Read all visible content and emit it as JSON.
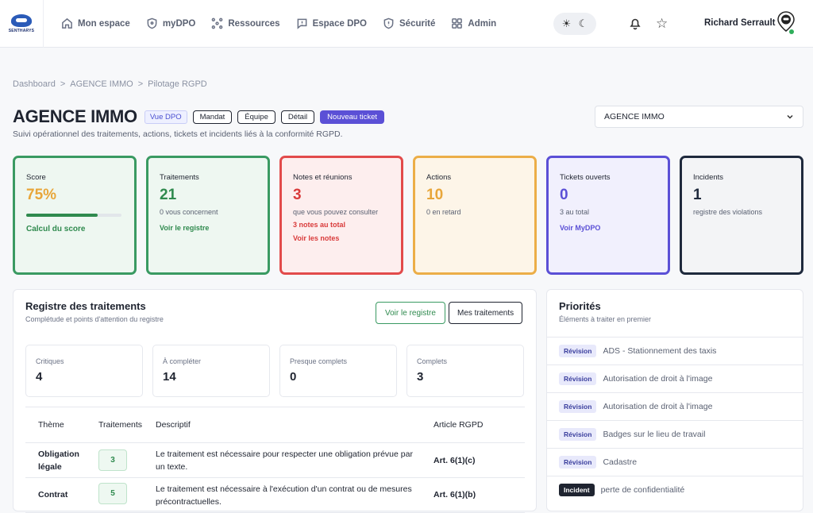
{
  "brand": {
    "name": "SENTHARYS"
  },
  "nav": {
    "items": [
      {
        "label": "Mon espace",
        "icon": "home-icon"
      },
      {
        "label": "myDPO",
        "icon": "shield-icon"
      },
      {
        "label": "Ressources",
        "icon": "nodes-icon"
      },
      {
        "label": "Espace DPO",
        "icon": "chat-icon"
      },
      {
        "label": "Sécurité",
        "icon": "shield-check-icon"
      },
      {
        "label": "Admin",
        "icon": "grid-icon"
      }
    ],
    "theme": {
      "light_icon": "sun-icon",
      "dark_icon": "moon-icon"
    },
    "user": {
      "name": "Richard Serrault"
    }
  },
  "breadcrumb": [
    "Dashboard",
    ">",
    "AGENCE IMMO",
    ">",
    "Pilotage RGPD"
  ],
  "header": {
    "title": "AGENCE IMMO",
    "badge": "Vue DPO",
    "chips": [
      "Mandat",
      "Équipe",
      "Détail"
    ],
    "primary_action": "Nouveau ticket",
    "subtitle": "Suivi opérationnel des traitements, actions, tickets et incidents liés à la conformité RGPD.",
    "selector_value": "AGENCE IMMO"
  },
  "kpis": {
    "score": {
      "label": "Score",
      "value": "75%",
      "progress": 75,
      "link": "Calcul du score",
      "color": "#2f8a4e"
    },
    "traitements": {
      "label": "Traitements",
      "value": "21",
      "sub": "0 vous concernent",
      "link": "Voir le registre",
      "color": "#2f8a4e"
    },
    "notes": {
      "label": "Notes et réunions",
      "value": "3",
      "sub": "que vous pouvez consulter",
      "alert": "3 notes au total",
      "link": "Voir les notes",
      "color": "#d93b3b"
    },
    "actions": {
      "label": "Actions",
      "value": "10",
      "sub": "0 en retard",
      "color": "#e8a63a"
    },
    "tickets": {
      "label": "Tickets ouverts",
      "value": "0",
      "sub": "3 au total",
      "link": "Voir MyDPO",
      "color": "#5b50d6"
    },
    "incidents": {
      "label": "Incidents",
      "value": "1",
      "sub": "registre des violations",
      "color": "#1f2a3d"
    }
  },
  "registre": {
    "title": "Registre des traitements",
    "subtitle": "Complétude et points d'attention du registre",
    "btn_registre": "Voir le registre",
    "btn_mes": "Mes traitements",
    "stats": [
      {
        "label": "Critiques",
        "value": "4"
      },
      {
        "label": "À compléter",
        "value": "14"
      },
      {
        "label": "Presque complets",
        "value": "0"
      },
      {
        "label": "Complets",
        "value": "3"
      }
    ],
    "columns": [
      "Thème",
      "Traitements",
      "Descriptif",
      "Article RGPD"
    ],
    "rows": [
      {
        "theme": "Obligation légale",
        "count": "3",
        "desc": "Le traitement est nécessaire pour respecter une obligation prévue par un texte.",
        "article": "Art. 6(1)(c)"
      },
      {
        "theme": "Contrat",
        "count": "5",
        "desc": "Le traitement est nécessaire à l'exécution d'un contrat ou de mesures précontractuelles.",
        "article": "Art. 6(1)(b)"
      }
    ]
  },
  "priorites": {
    "title": "Priorités",
    "subtitle": "Éléments à traiter en premier",
    "items": [
      {
        "tag": "Révision",
        "label": "ADS - Stationnement des taxis"
      },
      {
        "tag": "Révision",
        "label": "Autorisation de droit à l'image"
      },
      {
        "tag": "Révision",
        "label": "Autorisation de droit à l'image"
      },
      {
        "tag": "Révision",
        "label": "Badges sur le lieu de travail"
      },
      {
        "tag": "Révision",
        "label": "Cadastre"
      },
      {
        "tag": "Incident",
        "label": "perte de confidentialité"
      }
    ]
  }
}
